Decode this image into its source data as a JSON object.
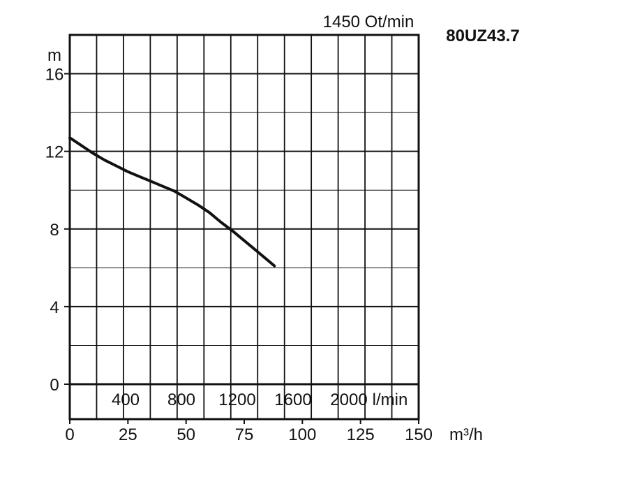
{
  "chart_data": {
    "type": "line",
    "speed_label": "1450 Ot/min",
    "model_label": "80UZ43.7",
    "ylabel": "m",
    "ylim": [
      0,
      18
    ],
    "yticks": [
      "0",
      "4",
      "8",
      "12",
      "16"
    ],
    "lmin_ticks": [
      "400",
      "800",
      "1200",
      "1600",
      "2000"
    ],
    "lmin_unit": "l/min",
    "m3h_ticks": [
      "0",
      "25",
      "50",
      "75",
      "100",
      "125",
      "150"
    ],
    "m3h_unit": "m³/h",
    "xlim_m3h": [
      0,
      150
    ],
    "grid": true,
    "series": [
      {
        "x": [
          0,
          5,
          10,
          15,
          20,
          25,
          30,
          35,
          40,
          45,
          50,
          55,
          60,
          65,
          70,
          75,
          80,
          85,
          88
        ],
        "y": [
          12.7,
          12.3,
          11.9,
          11.55,
          11.25,
          10.95,
          10.7,
          10.45,
          10.2,
          9.95,
          9.6,
          9.25,
          8.85,
          8.35,
          7.9,
          7.4,
          6.9,
          6.4,
          6.1
        ]
      }
    ]
  }
}
